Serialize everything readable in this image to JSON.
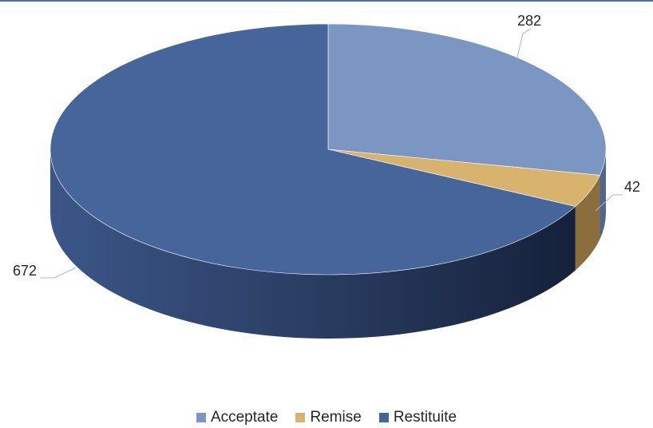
{
  "chart_data": {
    "type": "pie",
    "categories": [
      "Acceptate",
      "Remise",
      "Restituite"
    ],
    "values": [
      282,
      42,
      672
    ],
    "data_labels": [
      "282",
      "42",
      "672"
    ],
    "colors": [
      "#7b96c2",
      "#d8b36e",
      "#46659a"
    ],
    "legend_position": "bottom",
    "style": "3d"
  }
}
